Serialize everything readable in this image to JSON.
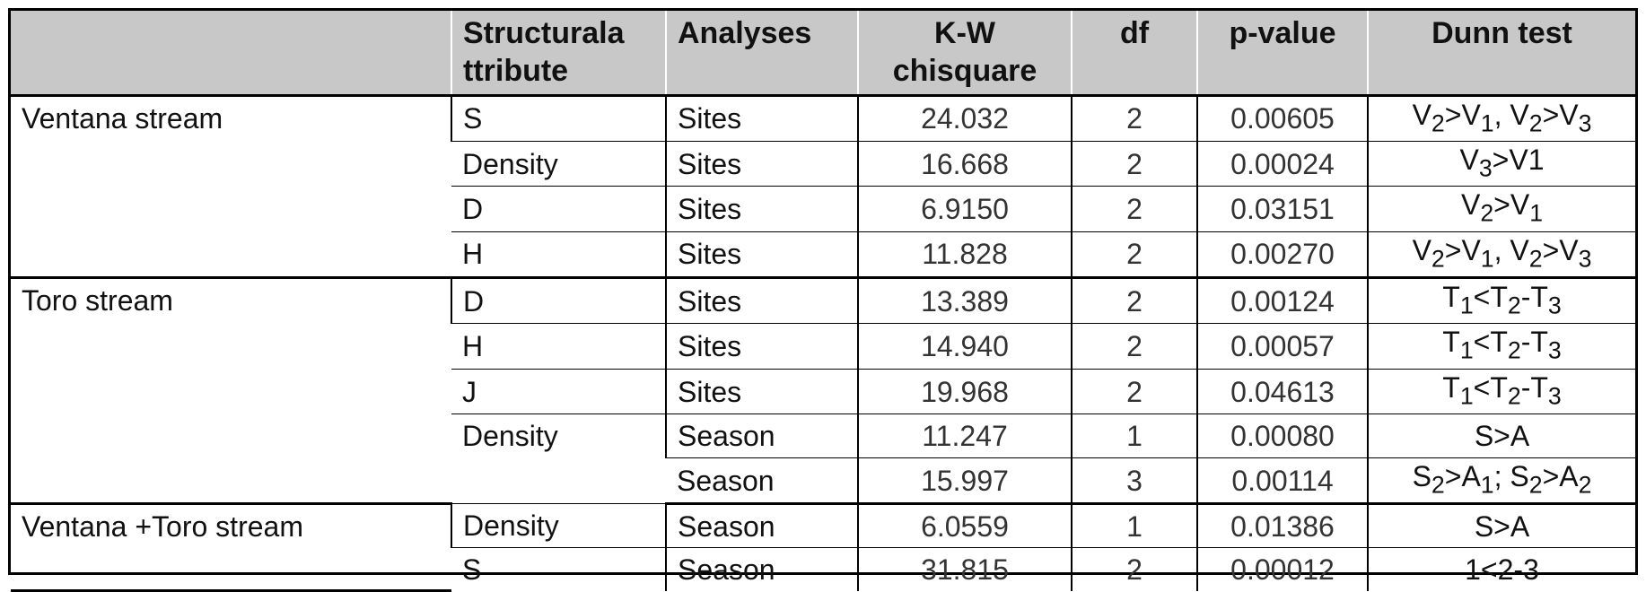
{
  "headers": {
    "group": "",
    "attribute": "Structurala ttribute",
    "analyses": "Analyses",
    "kw": "K-W chisquare",
    "df": "df",
    "pvalue": "p-value",
    "dunn": "Dunn test"
  },
  "groups": [
    {
      "name": "Ventana stream",
      "rows": [
        {
          "attribute": "S",
          "analyses": "Sites",
          "kw": "24.032",
          "df": "2",
          "p": "0.00605",
          "dunn": "V<sub>2</sub>&gt;V<sub>1</sub>, V<sub>2</sub>&gt;V<sub>3</sub>"
        },
        {
          "attribute": "Density",
          "analyses": "Sites",
          "kw": "16.668",
          "df": "2",
          "p": "0.00024",
          "dunn": "V<sub>3</sub>&gt;V1"
        },
        {
          "attribute": "D",
          "analyses": "Sites",
          "kw": "6.9150",
          "df": "2",
          "p": "0.03151",
          "dunn": "V<sub>2</sub>&gt;V<sub>1</sub>"
        },
        {
          "attribute": "H",
          "analyses": "Sites",
          "kw": "11.828",
          "df": "2",
          "p": "0.00270",
          "dunn": "V<sub>2</sub>&gt;V<sub>1</sub>, V<sub>2</sub>&gt;V<sub>3</sub>"
        }
      ]
    },
    {
      "name": "Toro stream",
      "rows": [
        {
          "attribute": "D",
          "analyses": "Sites",
          "kw": "13.389",
          "df": "2",
          "p": "0.00124",
          "dunn": "T<sub>1</sub>&lt;T<sub>2</sub>-T<sub>3</sub>"
        },
        {
          "attribute": "H",
          "analyses": "Sites",
          "kw": "14.940",
          "df": "2",
          "p": "0.00057",
          "dunn": "T<sub>1</sub>&lt;T<sub>2</sub>-T<sub>3</sub>"
        },
        {
          "attribute": "J",
          "analyses": "Sites",
          "kw": "19.968",
          "df": "2",
          "p": "0.04613",
          "dunn": "T<sub>1</sub>&lt;T<sub>2</sub>-T<sub>3</sub>"
        },
        {
          "attribute": "Density",
          "analyses": "Season",
          "kw": "11.247",
          "df": "1",
          "p": "0.00080",
          "dunn": "S&gt;A"
        },
        {
          "attribute": "",
          "analyses": "Season",
          "kw": "15.997",
          "df": "3",
          "p": "0.00114",
          "dunn": "S<sub>2</sub>&gt;A<sub>1</sub>; S<sub>2</sub>&gt;A<sub>2</sub>"
        }
      ]
    },
    {
      "name": "Ventana +Toro stream",
      "rows": [
        {
          "attribute": "Density",
          "analyses": "Season",
          "kw": "6.0559",
          "df": "1",
          "p": "0.01386",
          "dunn": "S&gt;A"
        },
        {
          "attribute": "S",
          "analyses": "Season",
          "kw": "31.815",
          "df": "2",
          "p": "0.00012",
          "dunn": "1&lt;2-3"
        }
      ]
    }
  ]
}
